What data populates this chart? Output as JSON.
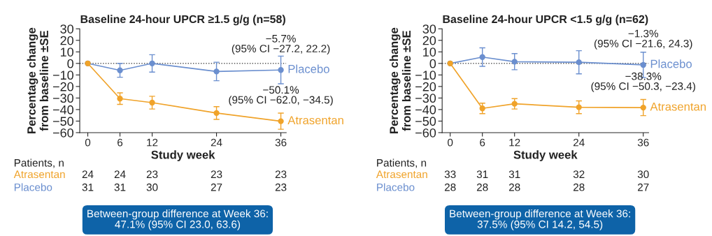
{
  "chart_data": [
    {
      "type": "line",
      "title": "Baseline 24-hour UPCR ≥1.5 g/g (n=58)",
      "xlabel": "Study week",
      "ylabel": "Percentage change\nfrom baseline ±SE",
      "x": [
        0,
        6,
        12,
        24,
        36
      ],
      "xlim": [
        -1.5,
        37
      ],
      "xticks": [
        0,
        6,
        12,
        24,
        36
      ],
      "ylim": [
        -60,
        30
      ],
      "yticks": [
        {
          "value": -60,
          "label": "−60"
        },
        {
          "value": -50,
          "label": "−50"
        },
        {
          "value": -40,
          "label": "−40"
        },
        {
          "value": -30,
          "label": "−30"
        },
        {
          "value": -20,
          "label": "−20"
        },
        {
          "value": -10,
          "label": "−10"
        },
        0,
        10,
        20,
        30
      ],
      "marker": "circle",
      "legend": false,
      "grid": false,
      "ref_lines": [
        {
          "axis": "y",
          "value": 0,
          "color": "#555555",
          "line_style": "dotted"
        }
      ],
      "series": [
        {
          "name": "Placebo",
          "color": "#6b8fcf",
          "values": [
            0,
            -6,
            0,
            -7,
            -5.7
          ],
          "errors": [
            null,
            6,
            7.5,
            8,
            12
          ]
        },
        {
          "name": "Atrasentan",
          "color": "#f0a32a",
          "values": [
            0,
            -30.5,
            -34,
            -43,
            -50.1
          ],
          "errors": [
            null,
            5,
            5.5,
            5.5,
            7
          ]
        }
      ],
      "annotations": [
        "−5.7%\n(95% CI −27.2, 22.2)",
        "−50.1%\n(95% CI −62.0, −34.5)",
        "Patients, n",
        "31",
        "31",
        "30",
        "27",
        "23",
        "24",
        "24",
        "23",
        "23",
        "23",
        "Between-group difference at Week 36:\n47.1% (95% CI 23.0, 63.6)"
      ]
    },
    {
      "type": "line",
      "title": "Baseline 24-hour UPCR <1.5 g/g (n=62)",
      "xlabel": "Study week",
      "ylabel": "Percentage change\nfrom baseline ±SE",
      "x": [
        0,
        6,
        12,
        24,
        36
      ],
      "xlim": [
        -1.5,
        37
      ],
      "xticks": [
        0,
        6,
        12,
        24,
        36
      ],
      "ylim": [
        -60,
        30
      ],
      "yticks": [
        {
          "value": -60,
          "label": "−60"
        },
        {
          "value": -50,
          "label": "−50"
        },
        {
          "value": -40,
          "label": "−40"
        },
        {
          "value": -30,
          "label": "−30"
        },
        {
          "value": -20,
          "label": "−20"
        },
        {
          "value": -10,
          "label": "−10"
        },
        0,
        10,
        20,
        30
      ],
      "marker": "circle",
      "legend": false,
      "grid": false,
      "ref_lines": [
        {
          "axis": "y",
          "value": 0,
          "color": "#555555",
          "line_style": "dotted"
        }
      ],
      "series": [
        {
          "name": "Placebo",
          "color": "#6b8fcf",
          "values": [
            0,
            5.5,
            1.5,
            1,
            -1.3
          ],
          "errors": [
            null,
            8,
            7,
            10,
            11
          ]
        },
        {
          "name": "Atrasentan",
          "color": "#f0a32a",
          "values": [
            0,
            -39,
            -35,
            -38,
            -38.3
          ],
          "errors": [
            null,
            4.5,
            4.5,
            5.5,
            7
          ]
        }
      ],
      "annotations": [
        "−1.3%\n(95% CI −21.6, 24.3)",
        "−38.3%\n(95% CI −50.3, −23.4)",
        "Patients, n",
        "28",
        "28",
        "28",
        "28",
        "27",
        "33",
        "31",
        "31",
        "32",
        "30",
        "Between-group difference at Week 36:\n37.5% (95% CI 14.2, 54.5)"
      ]
    }
  ]
}
